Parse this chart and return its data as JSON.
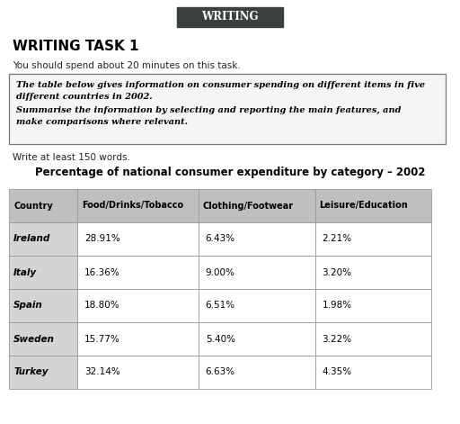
{
  "header_title": "WRITING",
  "section_title": "WRITING TASK 1",
  "instruction_line": "You should spend about 20 minutes on this task.",
  "box_text_line1": "The table below gives information on consumer spending on different items in five",
  "box_text_line2": "different countries in 2002.",
  "box_text_line3": "Summarise the information by selecting and reporting the main features, and",
  "box_text_line4": "make comparisons where relevant.",
  "write_words": "Write at least 150 words.",
  "table_title": "Percentage of national consumer expenditure by category – 2002",
  "col_headers": [
    "Country",
    "Food/Drinks/Tobacco",
    "Clothing/Footwear",
    "Leisure/Education"
  ],
  "rows": [
    [
      "Ireland",
      "28.91%",
      "6.43%",
      "2.21%"
    ],
    [
      "Italy",
      "16.36%",
      "9.00%",
      "3.20%"
    ],
    [
      "Spain",
      "18.80%",
      "6.51%",
      "1.98%"
    ],
    [
      "Sweden",
      "15.77%",
      "5.40%",
      "3.22%"
    ],
    [
      "Turkey",
      "32.14%",
      "6.63%",
      "4.35%"
    ]
  ],
  "bg_color": "#ffffff",
  "header_bg": "#3a4040",
  "header_text_color": "#ffffff",
  "table_header_bg": "#c0bfbf",
  "table_row_bg": "#ffffff",
  "table_country_bg": "#d4d4d4",
  "border_color": "#999999",
  "box_border_color": "#777777",
  "box_bg": "#f5f5f5"
}
